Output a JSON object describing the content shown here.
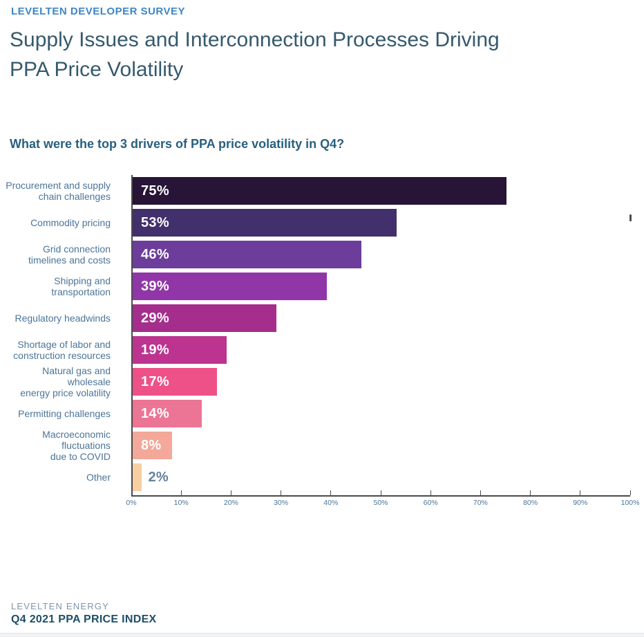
{
  "header": {
    "eyebrow": "LEVELTEN DEVELOPER SURVEY",
    "title_lines": [
      "Supply Issues and Interconnection Processes Driving",
      "PPA Price Volatility"
    ]
  },
  "question": "What were the top 3 drivers of PPA price volatility in Q4?",
  "chart_data": {
    "type": "bar",
    "orientation": "horizontal",
    "title": "What were the top 3 drivers of PPA price volatility in Q4?",
    "categories": [
      "Procurement and supply\nchain challenges",
      "Commodity pricing",
      "Grid connection\ntimelines and costs",
      "Shipping and\ntransportation",
      "Regulatory headwinds",
      "Shortage of labor and\nconstruction resources",
      "Natural gas and wholesale\nenergy price volatility",
      "Permitting challenges",
      "Macroeconomic\nfluctuations\ndue to COVID",
      "Other"
    ],
    "values": [
      75,
      53,
      46,
      39,
      29,
      19,
      17,
      14,
      8,
      2
    ],
    "value_labels": [
      "75%",
      "53%",
      "46%",
      "39%",
      "29%",
      "19%",
      "17%",
      "14%",
      "8%",
      "2%"
    ],
    "bar_colors": [
      "#271437",
      "#41306b",
      "#6c3d9b",
      "#9136a8",
      "#a52e8d",
      "#bd3390",
      "#ee5187",
      "#ec7494",
      "#f3a899",
      "#f8cfa0"
    ],
    "xlabel": "",
    "ylabel": "",
    "x_axis": {
      "min": 0,
      "max": 100,
      "tick_step": 10,
      "tick_labels": [
        "0%",
        "10%",
        "20%",
        "30%",
        "40%",
        "50%",
        "60%",
        "70%",
        "80%",
        "90%",
        "100%"
      ]
    },
    "grid": false,
    "legend": false
  },
  "footer": {
    "org": "LEVELTEN ENERGY",
    "report": "Q4 2021 PPA PRICE INDEX"
  },
  "colors": {
    "page_bg": "#ffffff",
    "eyebrow": "#3d86c6",
    "title": "#35596d",
    "question": "#27607f",
    "category_label": "#4b7499",
    "tick_label": "#4b7499",
    "axis": "#4a4a4a",
    "value_inside": "#ffffff",
    "value_outside": "#64829f",
    "footer_org": "#7e96ab",
    "footer_report": "#1d4f67"
  }
}
